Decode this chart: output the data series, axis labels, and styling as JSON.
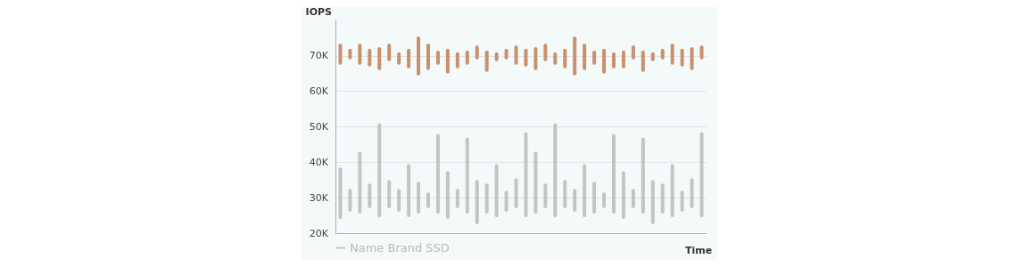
{
  "chart_data": {
    "type": "bar",
    "ylabel": "IOPS",
    "xlabel": "Time",
    "categories": [
      null,
      null,
      null,
      null,
      null,
      null,
      null,
      null,
      null,
      null,
      null,
      null,
      null,
      null,
      null,
      null,
      null,
      null,
      null,
      null,
      null,
      null,
      null,
      null,
      null,
      null,
      null,
      null,
      null,
      null,
      null,
      null,
      null,
      null,
      null,
      null,
      null,
      null
    ],
    "series": [
      {
        "color": "#c8916b",
        "base": [
          67500,
          69000,
          67500,
          67000,
          66000,
          68500,
          67500,
          66500,
          64500,
          66000,
          67500,
          65000,
          66500,
          67500,
          69000,
          65500,
          68500,
          69000,
          67500,
          67000,
          66000,
          68500,
          67500,
          66500,
          64500,
          66000,
          67500,
          65000,
          66500,
          66500,
          69000,
          65500,
          68500,
          69000,
          67500,
          67000,
          66000,
          69000
        ],
        "values": [
          6000,
          3000,
          6000,
          5000,
          6500,
          5000,
          3500,
          5500,
          11000,
          7500,
          4000,
          7000,
          4500,
          4000,
          4000,
          6000,
          2500,
          3000,
          5500,
          5000,
          6500,
          5000,
          3500,
          5500,
          11000,
          7500,
          4000,
          7000,
          4500,
          5000,
          4000,
          6000,
          2500,
          3000,
          6000,
          5000,
          6500,
          4000
        ]
      },
      {
        "name": "Name Brand SSD",
        "color": "#c4c4c4",
        "base": [
          24000,
          26000,
          25500,
          27000,
          24500,
          27000,
          26000,
          24500,
          25500,
          27000,
          25500,
          24000,
          27000,
          25500,
          22500,
          25500,
          24500,
          26000,
          27000,
          24500,
          25500,
          27000,
          24500,
          27000,
          26000,
          24500,
          25500,
          27000,
          25500,
          24000,
          27000,
          25500,
          22500,
          25500,
          24500,
          26000,
          27000,
          24500
        ],
        "values": [
          14500,
          6500,
          17500,
          7000,
          26500,
          8000,
          6500,
          15000,
          9000,
          4500,
          22500,
          13500,
          5500,
          21500,
          12500,
          8500,
          15000,
          6000,
          8500,
          24000,
          17500,
          7000,
          26500,
          8000,
          6500,
          15000,
          9000,
          4500,
          22500,
          13500,
          5500,
          21500,
          12500,
          8500,
          15000,
          6000,
          8500,
          24000
        ]
      }
    ],
    "ylim": [
      20000,
      80000
    ],
    "yticks": [
      {
        "value": 20000,
        "label": "20K"
      },
      {
        "value": 30000,
        "label": "30K"
      },
      {
        "value": 40000,
        "label": "40K"
      },
      {
        "value": 50000,
        "label": "50K"
      },
      {
        "value": 60000,
        "label": "60K"
      },
      {
        "value": 70000,
        "label": "70K"
      }
    ],
    "grid": "y",
    "legend": "bottom left",
    "tick_labels": "y"
  }
}
